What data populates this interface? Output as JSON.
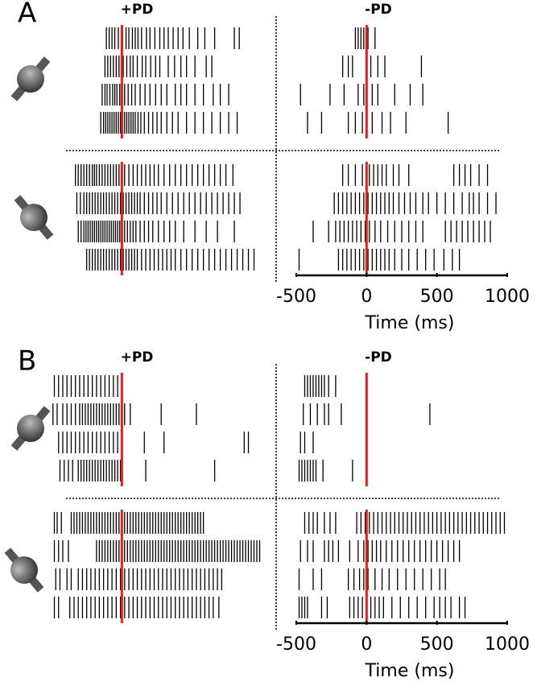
{
  "chart_data": [
    {
      "type": "raster",
      "panel": "A",
      "columns": [
        "+PD",
        "-PD"
      ],
      "xlabel": "Time (ms)",
      "xlim": [
        -500,
        1000
      ],
      "xticks": [
        -500,
        0,
        500,
        1000
      ],
      "event_color": "#e02020",
      "spike_color": "#000000",
      "trials": [
        [
          [
            [
              -110,
              -90,
              -70,
              -50,
              -25,
              5,
              30,
              50,
              75,
              95,
              115,
              140,
              175,
              200,
              235,
              270,
              300,
              330,
              365,
              400,
              435,
              480,
              540,
              590,
              660,
              800,
              835
            ],
            [
              -120,
              -100,
              -80,
              -60,
              -40,
              -20,
              10,
              35,
              60,
              80,
              110,
              145,
              170,
              205,
              240,
              270,
              330,
              375,
              420,
              460,
              520,
              600,
              640
            ],
            [
              -140,
              -120,
              -105,
              -85,
              -65,
              -50,
              -35,
              -15,
              0,
              20,
              45,
              70,
              95,
              130,
              165,
              200,
              240,
              280,
              320,
              380,
              420,
              460,
              520,
              580,
              650,
              700,
              760
            ],
            [
              -150,
              -130,
              -115,
              -100,
              -85,
              -70,
              -55,
              -40,
              -25,
              -10,
              5,
              20,
              35,
              50,
              65,
              80,
              95,
              115,
              135,
              160,
              190,
              220,
              250,
              280,
              320,
              360,
              400,
              460,
              520,
              580,
              640,
              700,
              760,
              820
            ]
          ],
          [
            [
              -80,
              -60,
              -40,
              -20,
              10,
              60
            ],
            [
              -170,
              -130,
              -100,
              30,
              80,
              130,
              390
            ],
            [
              -470,
              -260,
              -160,
              -60,
              -20,
              40,
              80,
              200,
              310,
              400
            ],
            [
              -420,
              -320,
              -130,
              -80,
              -30,
              40,
              110,
              170,
              280,
              580
            ]
          ]
        ],
        [
          [
            [
              -330,
              -310,
              -290,
              -270,
              -250,
              -230,
              -210,
              -195,
              -180,
              -160,
              -140,
              -120,
              -100,
              -80,
              -60,
              -40,
              -20,
              0,
              20,
              50,
              80,
              110,
              140,
              170,
              200,
              230,
              260,
              300,
              340,
              380,
              420,
              460,
              500,
              540,
              580,
              620,
              660,
              700,
              740,
              790
            ],
            [
              -320,
              -295,
              -270,
              -250,
              -230,
              -210,
              -190,
              -170,
              -150,
              -130,
              -110,
              -90,
              -70,
              -50,
              -30,
              -10,
              10,
              30,
              50,
              70,
              90,
              110,
              130,
              160,
              190,
              220,
              250,
              280,
              320,
              360,
              400,
              440,
              480,
              520,
              560,
              600,
              640,
              680,
              720,
              760,
              800,
              840
            ],
            [
              -310,
              -290,
              -270,
              -255,
              -240,
              -225,
              -210,
              -195,
              -180,
              -165,
              -150,
              -135,
              -120,
              -105,
              -90,
              -75,
              -60,
              -45,
              -30,
              -15,
              0,
              20,
              40,
              60,
              80,
              100,
              130,
              160,
              190,
              220,
              260,
              300,
              340,
              380,
              440,
              520,
              600,
              680,
              800
            ],
            [
              -250,
              -230,
              -210,
              -190,
              -170,
              -150,
              -130,
              -110,
              -90,
              -70,
              -50,
              -30,
              -10,
              10,
              30,
              50,
              70,
              90,
              110,
              140,
              170,
              200,
              230,
              260,
              290,
              320,
              350,
              380,
              420,
              460,
              500,
              540,
              580,
              620,
              660,
              700,
              740,
              780,
              820,
              860,
              900,
              940
            ]
          ],
          [
            [
              -170,
              -130,
              -80,
              -30,
              20,
              50,
              80,
              110,
              140,
              190,
              230,
              300,
              620,
              660,
              700,
              740,
              800,
              860
            ],
            [
              -230,
              -200,
              -170,
              -140,
              -110,
              -80,
              -50,
              -20,
              10,
              40,
              70,
              100,
              130,
              160,
              190,
              230,
              270,
              310,
              350,
              400,
              440,
              500,
              560,
              620,
              680,
              730,
              760,
              800,
              860,
              920
            ],
            [
              -380,
              -270,
              -220,
              -190,
              -160,
              -130,
              -100,
              -70,
              -40,
              -10,
              20,
              60,
              100,
              150,
              200,
              250,
              300,
              350,
              400,
              560,
              600,
              640,
              680,
              720,
              760,
              800,
              840,
              880
            ],
            [
              -480,
              -200,
              -170,
              -140,
              -110,
              -80,
              -50,
              -20,
              10,
              40,
              70,
              100,
              130,
              160,
              200,
              250,
              300,
              360,
              420,
              480,
              550,
              610,
              660
            ]
          ]
        ]
      ]
    },
    {
      "type": "raster",
      "panel": "B",
      "columns": [
        "+PD",
        "-PD"
      ],
      "xlabel": "Time (ms)",
      "xlim": [
        -500,
        1000
      ],
      "xticks": [
        -500,
        0,
        500,
        1000
      ],
      "event_color": "#e02020",
      "spike_color": "#000000",
      "trials": [
        [
          [
            [
              -480,
              -450,
              -420,
              -390,
              -360,
              -330,
              -300,
              -270,
              -240,
              -210,
              -180,
              -150,
              -120,
              -90,
              -60,
              -30
            ],
            [
              -490,
              -460,
              -420,
              -390,
              -360,
              -330,
              -300,
              -280,
              -260,
              -240,
              -220,
              -200,
              -180,
              -160,
              -140,
              -120,
              -100,
              -80,
              -60,
              -40,
              -20,
              0,
              20,
              60,
              280,
              530
            ],
            [
              -450,
              -420,
              -390,
              -360,
              -330,
              -300,
              -270,
              -240,
              -210,
              -180,
              -150,
              -120,
              -90,
              -60,
              -30,
              160,
              300,
              870,
              900
            ],
            [
              -440,
              -410,
              -380,
              -350,
              -310,
              -290,
              -270,
              -250,
              -230,
              -210,
              -190,
              -170,
              -150,
              -130,
              -110,
              -90,
              -70,
              -50,
              -30,
              -10,
              170,
              660
            ]
          ],
          [
            [
              -440,
              -420,
              -400,
              -380,
              -360,
              -340,
              -320,
              -300,
              -270,
              -220
            ],
            [
              -450,
              -400,
              -350,
              -300,
              -270,
              -180,
              450
            ],
            [
              -470,
              -440,
              -380
            ],
            [
              -480,
              -460,
              -440,
              -420,
              -400,
              -380,
              -360,
              -310,
              -100
            ]
          ]
        ],
        [
          [
            [
              -480,
              -460,
              -430,
              -360,
              -340,
              -320,
              -300,
              -280,
              -260,
              -240,
              -220,
              -200,
              -180,
              -160,
              -140,
              -120,
              -100,
              -80,
              -60,
              -40,
              -20,
              0,
              20,
              40,
              60,
              80,
              100,
              120,
              140,
              160,
              180,
              200,
              220,
              240,
              260,
              280,
              300,
              320,
              340,
              360,
              380,
              400,
              420,
              440,
              460,
              480,
              500,
              520,
              540,
              560,
              580
            ],
            [
              -480,
              -450,
              -420,
              -380,
              -180,
              -160,
              -140,
              -120,
              -100,
              -80,
              -60,
              -40,
              -20,
              0,
              20,
              40,
              60,
              80,
              100,
              120,
              140,
              160,
              180,
              200,
              220,
              240,
              260,
              280,
              300,
              320,
              340,
              360,
              380,
              400,
              420,
              440,
              460,
              480,
              500,
              520,
              540,
              560,
              580,
              600,
              620,
              640,
              660,
              680,
              700,
              720,
              740,
              760,
              780,
              800,
              820,
              840,
              860,
              880,
              900,
              920,
              940,
              960,
              980
            ],
            [
              -470,
              -440,
              -390,
              -360,
              -310,
              -280,
              -250,
              -220,
              -190,
              -160,
              -130,
              -100,
              -70,
              -40,
              -10,
              20,
              50,
              80,
              110,
              140,
              170,
              200,
              230,
              260,
              290,
              320,
              350,
              380,
              410,
              440,
              470,
              500,
              530,
              560,
              590,
              620,
              650,
              680,
              710
            ],
            [
              -480,
              -450,
              -370,
              -340,
              -310,
              -280,
              -250,
              -220,
              -190,
              -160,
              -130,
              -100,
              -70,
              -40,
              -10,
              20,
              50,
              80,
              110,
              140,
              170,
              200,
              230,
              260,
              290,
              320,
              350,
              380,
              410,
              440,
              470,
              500,
              530,
              560,
              590,
              620,
              650,
              690
            ]
          ],
          [
            [
              -440,
              -410,
              -380,
              -350,
              -300,
              -260,
              -220,
              -70,
              -40,
              -10,
              20,
              50,
              80,
              110,
              140,
              170,
              200,
              230,
              260,
              290,
              320,
              350,
              380,
              410,
              440,
              470,
              500,
              530,
              560,
              590,
              620,
              650,
              680,
              710,
              740,
              770,
              800,
              830,
              860,
              890,
              920,
              950,
              980
            ],
            [
              -470,
              -420,
              -380,
              -300,
              -270,
              -240,
              -200,
              -120,
              -60,
              -20,
              10,
              40,
              70,
              100,
              140,
              180,
              220,
              260,
              300,
              340,
              380,
              420,
              460,
              500,
              540,
              580,
              620,
              660
            ],
            [
              -480,
              -380,
              -320,
              -130,
              -90,
              -50,
              -20,
              10,
              60,
              110,
              160,
              220,
              280,
              340,
              400,
              460,
              520,
              560
            ],
            [
              -480,
              -460,
              -440,
              -420,
              -320,
              -280,
              -120,
              -90,
              -60,
              -30,
              0,
              30,
              60,
              90,
              120,
              180,
              240,
              300,
              360,
              420,
              480,
              520,
              560,
              600,
              660,
              700
            ]
          ]
        ]
      ]
    }
  ]
}
